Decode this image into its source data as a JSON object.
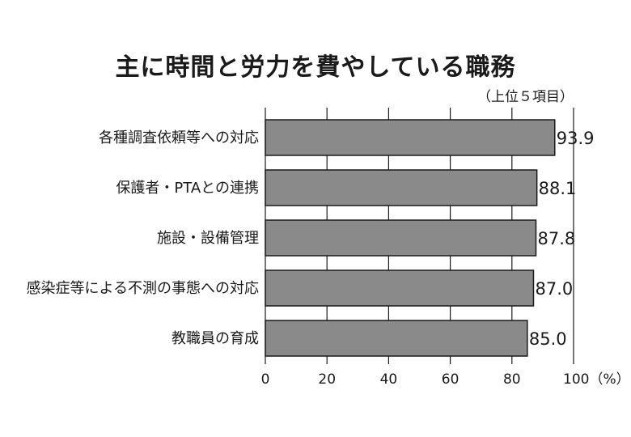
{
  "chart_data": {
    "type": "bar",
    "orientation": "horizontal",
    "title": "主に時間と労力を費やしている職務",
    "subtitle": "（上位５項目）",
    "categories": [
      "各種調査依頼等への対応",
      "保護者・PTAとの連携",
      "施設・設備管理",
      "感染症等による不測の事態への対応",
      "教職員の育成"
    ],
    "values": [
      93.9,
      88.1,
      87.8,
      87.0,
      85.0
    ],
    "value_labels": [
      "93.9",
      "88.1",
      "87.8",
      "87.0",
      "85.0"
    ],
    "xlim": [
      0,
      100
    ],
    "x_ticks": [
      "0",
      "20",
      "40",
      "60",
      "80",
      "100（%）"
    ],
    "grid": "vertical",
    "bar_color": "#8a8a8a",
    "legend": "none"
  }
}
